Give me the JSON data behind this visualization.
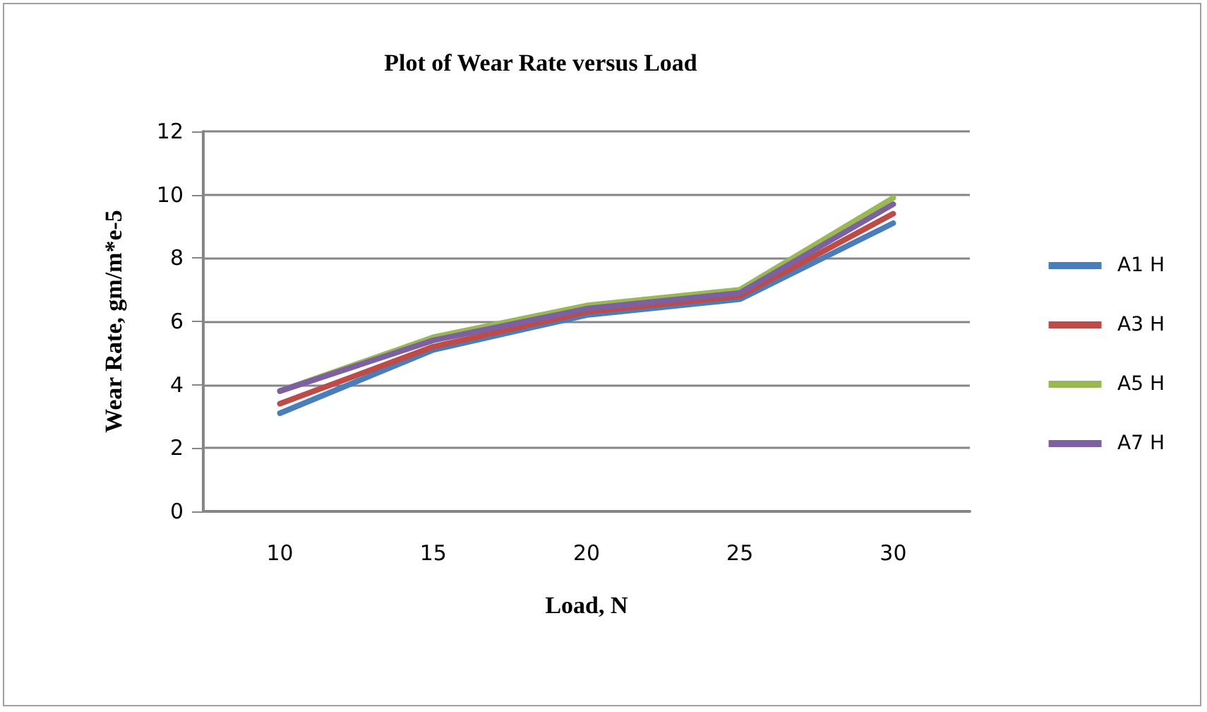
{
  "chart_data": {
    "type": "line",
    "title": "Plot of Wear Rate versus Load",
    "xlabel": "Load, N",
    "ylabel": "Wear Rate, gm/m*e-5",
    "categories": [
      "10",
      "15",
      "20",
      "25",
      "30"
    ],
    "series": [
      {
        "name": "A1 H",
        "color": "#4a7ebb",
        "values": [
          3.1,
          5.1,
          6.2,
          6.7,
          9.1
        ]
      },
      {
        "name": "A3 H",
        "color": "#be4b48",
        "values": [
          3.4,
          5.2,
          6.3,
          6.8,
          9.4
        ]
      },
      {
        "name": "A5 H",
        "color": "#98b954",
        "values": [
          3.8,
          5.5,
          6.5,
          7.0,
          9.9
        ]
      },
      {
        "name": "A7 H",
        "color": "#7d60a0",
        "values": [
          3.8,
          5.4,
          6.4,
          6.9,
          9.7
        ]
      }
    ],
    "ylim": [
      0,
      12
    ],
    "yticks": [
      0,
      2,
      4,
      6,
      8,
      10,
      12
    ],
    "grid": "y",
    "legend": "right",
    "marker": "none",
    "line_style": "solid"
  }
}
